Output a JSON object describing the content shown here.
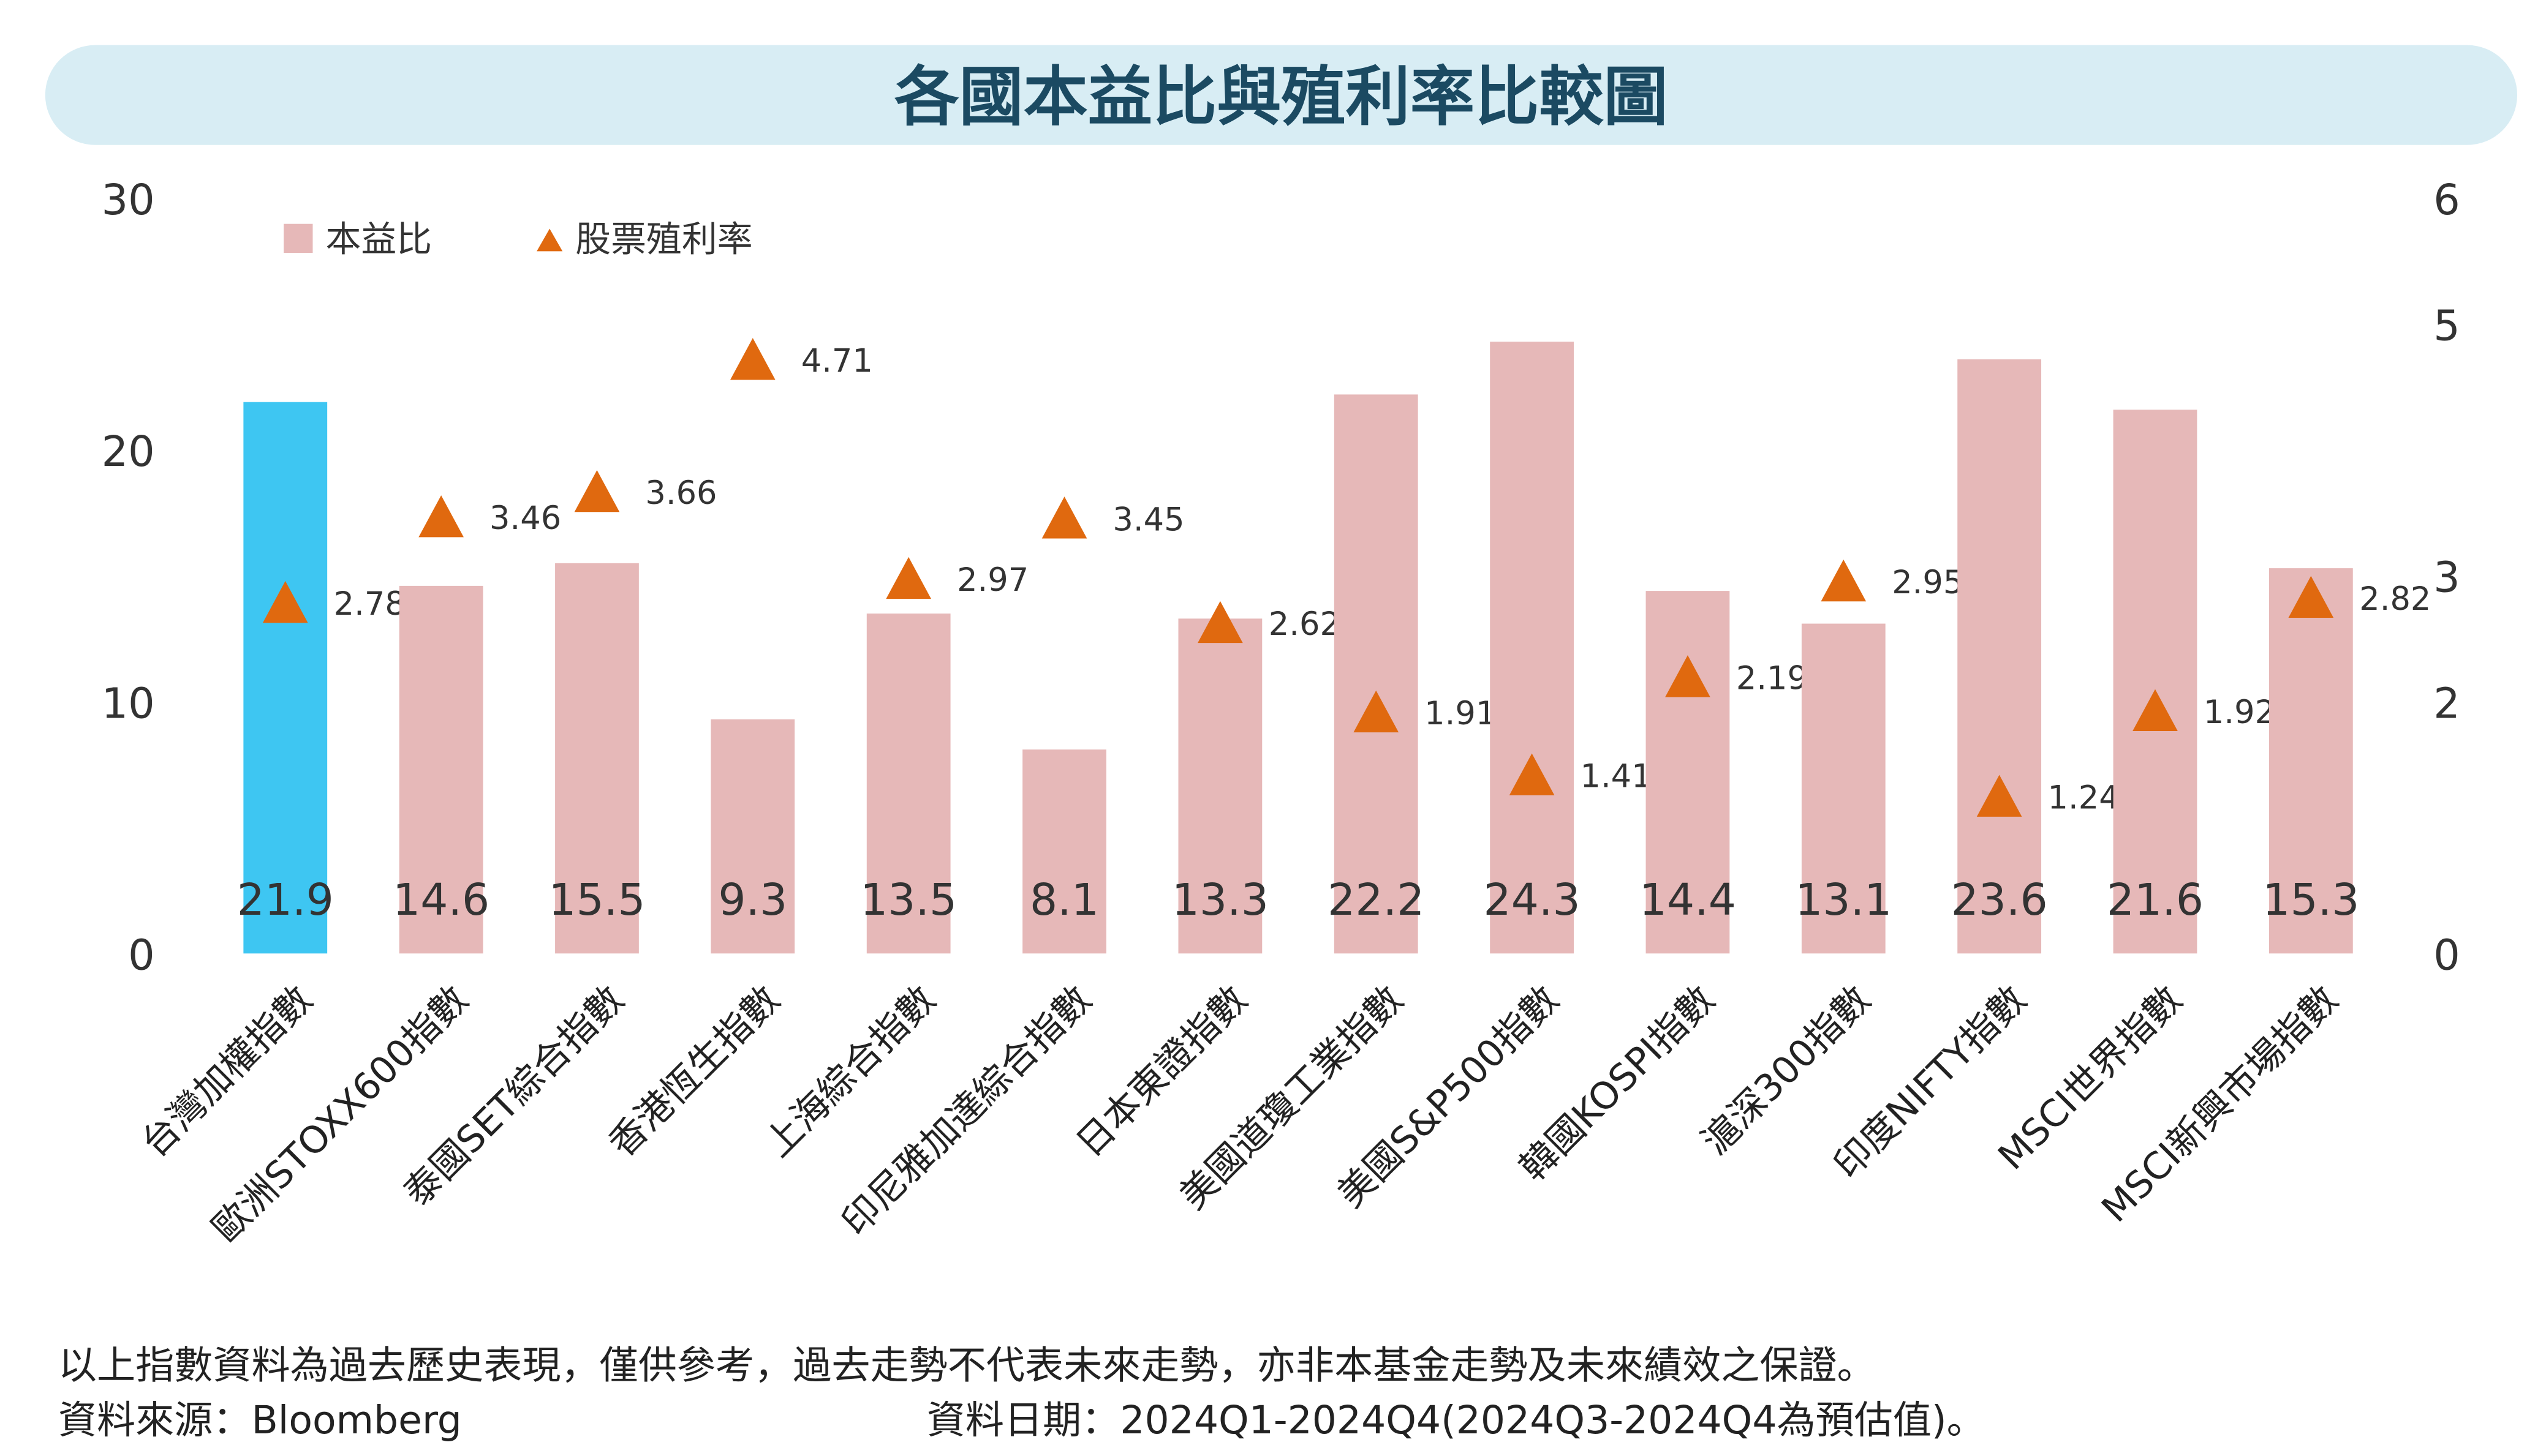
{
  "chart_data": {
    "type": "bar",
    "title": "各國本益比與殖利率比較圖",
    "categories": [
      "台灣加權指數",
      "歐洲STOXX600指數",
      "泰國SET綜合指數",
      "香港恆生指數",
      "上海綜合指數",
      "印尼雅加達綜合指數",
      "日本東證指數",
      "美國道瓊工業指數",
      "美國S&P500指數",
      "韓國KOSPI指數",
      "滬深300指數",
      "印度NIFTY指數",
      "MSCI世界指數",
      "MSCI新興市場指數"
    ],
    "series": [
      {
        "name": "本益比",
        "type": "bar",
        "axis": "left",
        "color": "#e6b8b8",
        "highlight_color": "#3ec6f2",
        "highlight_index": 0,
        "values": [
          21.9,
          14.6,
          15.5,
          9.3,
          13.5,
          8.1,
          13.3,
          22.2,
          24.3,
          14.4,
          13.1,
          23.6,
          21.6,
          15.3
        ],
        "labels": [
          "21.9",
          "14.6",
          "15.5",
          "9.3",
          "13.5",
          "8.1",
          "13.3",
          "22.2",
          "24.3",
          "14.4",
          "13.1",
          "23.6",
          "21.6",
          "15.3"
        ]
      },
      {
        "name": "股票殖利率",
        "type": "scatter",
        "marker": "triangle",
        "axis": "right",
        "color": "#e0690f",
        "values": [
          2.78,
          3.46,
          3.66,
          4.71,
          2.97,
          3.45,
          2.62,
          1.91,
          1.41,
          2.19,
          2.95,
          1.24,
          1.92,
          2.82
        ],
        "labels": [
          "2.78",
          "3.46",
          "3.66",
          "4.71",
          "2.97",
          "3.45",
          "2.62",
          "1.91",
          "1.41",
          "2.19",
          "2.95",
          "1.24",
          "1.92",
          "2.82"
        ]
      }
    ],
    "y_left": {
      "ylim": [
        0,
        30
      ],
      "ticks": [
        "0",
        "10",
        "20",
        "30"
      ]
    },
    "y_right": {
      "ylim": [
        0,
        6
      ],
      "ticks": [
        "0",
        "2",
        "3",
        "5",
        "6"
      ],
      "tick_values": [
        0,
        2,
        3,
        5,
        6
      ]
    },
    "grid": false,
    "legend": "top-left",
    "title_bg": "#d8edf4",
    "title_color": "#1b4a62"
  },
  "footer": {
    "disclaimer": "以上指數資料為過去歷史表現，僅供參考，過去走勢不代表未來走勢，亦非本基金走勢及未來績效之保證。",
    "source": "資料來源：Bloomberg",
    "date": "資料日期：2024Q1-2024Q4(2024Q3-2024Q4為預估值)。"
  }
}
